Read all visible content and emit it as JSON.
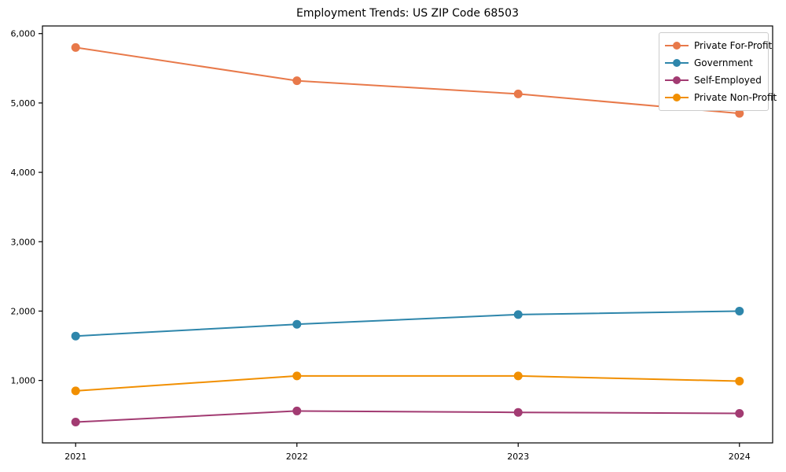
{
  "chart_data": {
    "type": "line",
    "title": "Employment Trends: US ZIP Code 68503",
    "x": [
      2021,
      2022,
      2023,
      2024
    ],
    "x_tick_labels": [
      "2021",
      "2022",
      "2023",
      "2024"
    ],
    "series": [
      {
        "name": "Private For-Profit",
        "color": "#E8794A",
        "values": [
          5800,
          5320,
          5130,
          4850
        ]
      },
      {
        "name": "Government",
        "color": "#2E86AB",
        "values": [
          1640,
          1810,
          1950,
          2000
        ]
      },
      {
        "name": "Self-Employed",
        "color": "#A23B72",
        "values": [
          400,
          560,
          540,
          525
        ]
      },
      {
        "name": "Private Non-Profit",
        "color": "#F18F01",
        "values": [
          850,
          1065,
          1065,
          990
        ]
      }
    ],
    "yticks": [
      1000,
      2000,
      3000,
      4000,
      5000,
      6000
    ],
    "ytick_labels": [
      "1,000",
      "2,000",
      "3,000",
      "4,000",
      "5,000",
      "6,000"
    ],
    "ylim": [
      100,
      6110
    ],
    "xlim_years": [
      2020.85,
      2024.15
    ],
    "legend_position": "upper right",
    "grid": false,
    "marker": "circle",
    "axis_color": "#000000",
    "background_color": "#ffffff"
  }
}
